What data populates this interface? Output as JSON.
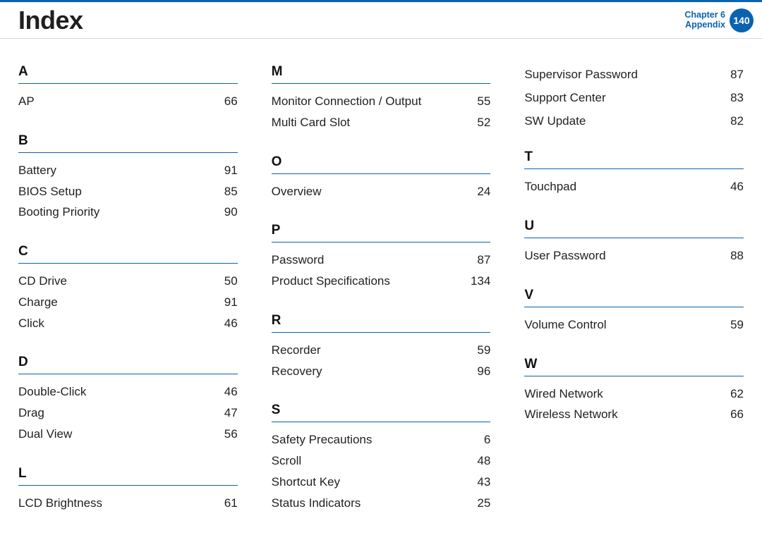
{
  "header": {
    "title": "Index",
    "chapter_line1": "Chapter 6",
    "chapter_line2": "Appendix",
    "page_number": "140"
  },
  "colors": {
    "accent": "#0a62b0",
    "text": "#222",
    "divider": "#d8d8d8"
  },
  "columns": [
    {
      "sections": [
        {
          "letter": "A",
          "entries": [
            {
              "term": "AP",
              "page": "66"
            }
          ]
        },
        {
          "letter": "B",
          "entries": [
            {
              "term": "Battery",
              "page": "91"
            },
            {
              "term": "BIOS Setup",
              "page": "85"
            },
            {
              "term": "Booting Priority",
              "page": "90"
            }
          ]
        },
        {
          "letter": "C",
          "entries": [
            {
              "term": "CD Drive",
              "page": "50"
            },
            {
              "term": "Charge",
              "page": "91"
            },
            {
              "term": "Click",
              "page": "46"
            }
          ]
        },
        {
          "letter": "D",
          "entries": [
            {
              "term": "Double-Click",
              "page": "46"
            },
            {
              "term": "Drag",
              "page": "47"
            },
            {
              "term": "Dual View",
              "page": "56"
            }
          ]
        },
        {
          "letter": "L",
          "entries": [
            {
              "term": "LCD Brightness",
              "page": "61"
            }
          ]
        }
      ]
    },
    {
      "sections": [
        {
          "letter": "M",
          "entries": [
            {
              "term": "Monitor Connection / Output",
              "page": "55"
            },
            {
              "term": "Multi Card Slot",
              "page": "52"
            }
          ]
        },
        {
          "letter": "O",
          "entries": [
            {
              "term": "Overview",
              "page": "24"
            }
          ]
        },
        {
          "letter": "P",
          "entries": [
            {
              "term": "Password",
              "page": "87"
            },
            {
              "term": "Product Specifications",
              "page": "134"
            }
          ]
        },
        {
          "letter": "R",
          "entries": [
            {
              "term": "Recorder",
              "page": "59"
            },
            {
              "term": "Recovery",
              "page": "96"
            }
          ]
        },
        {
          "letter": "S",
          "entries": [
            {
              "term": "Safety Precautions",
              "page": "6"
            },
            {
              "term": "Scroll",
              "page": "48"
            },
            {
              "term": "Shortcut Key",
              "page": "43"
            },
            {
              "term": "Status Indicators",
              "page": "25"
            }
          ]
        }
      ]
    },
    {
      "pre_entries": [
        {
          "term": "Supervisor Password",
          "page": "87"
        },
        {
          "term": "Support Center",
          "page": "83"
        },
        {
          "term": "SW Update",
          "page": "82"
        }
      ],
      "sections": [
        {
          "letter": "T",
          "entries": [
            {
              "term": "Touchpad",
              "page": "46"
            }
          ]
        },
        {
          "letter": "U",
          "entries": [
            {
              "term": "User Password",
              "page": "88"
            }
          ]
        },
        {
          "letter": "V",
          "entries": [
            {
              "term": "Volume Control",
              "page": "59"
            }
          ]
        },
        {
          "letter": "W",
          "entries": [
            {
              "term": "Wired Network",
              "page": "62"
            },
            {
              "term": "Wireless Network",
              "page": "66"
            }
          ]
        }
      ]
    }
  ]
}
